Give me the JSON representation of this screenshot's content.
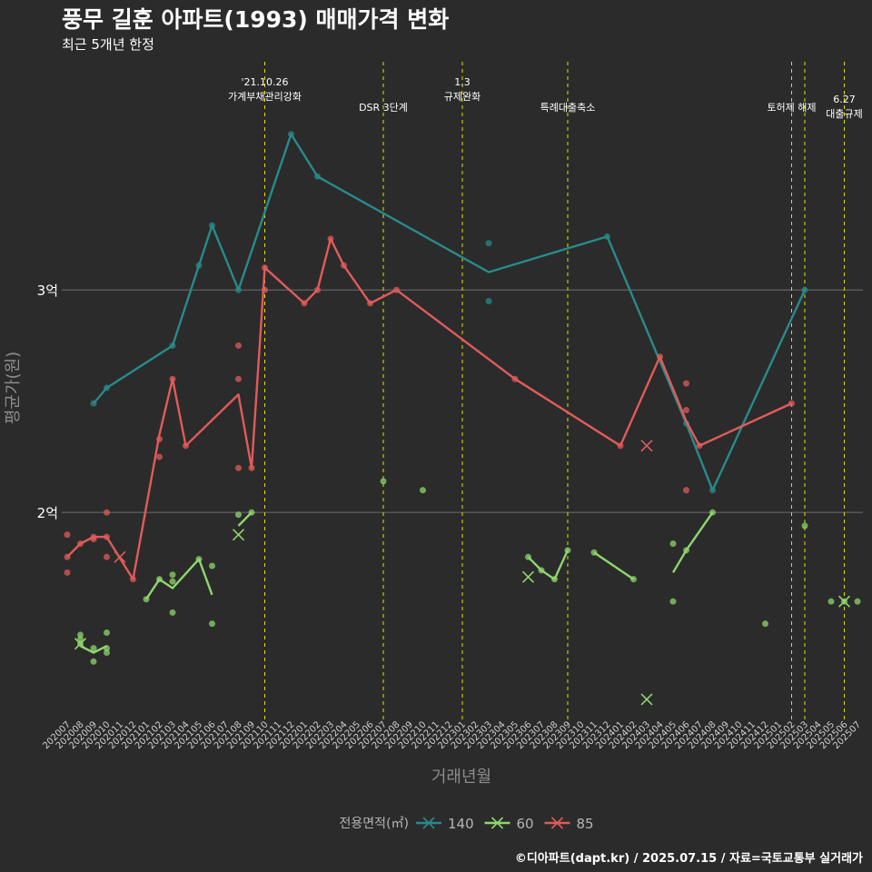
{
  "title": "풍무 길훈 아파트(1993) 매매가격 변화",
  "subtitle": "최근 5개년 한정",
  "caption": "©디아파트(dapt.kr) / 2025.07.15 / 자료=국토교통부 실거래가",
  "chart_data": {
    "type": "line",
    "xlabel": "거래년월",
    "ylabel": "평균가(원)",
    "categories": [
      "202007",
      "202008",
      "202009",
      "202010",
      "202011",
      "202012",
      "202101",
      "202102",
      "202103",
      "202104",
      "202105",
      "202106",
      "202107",
      "202108",
      "202109",
      "202110",
      "202111",
      "202112",
      "202201",
      "202202",
      "202203",
      "202204",
      "202205",
      "202206",
      "202207",
      "202208",
      "202209",
      "202210",
      "202211",
      "202212",
      "202301",
      "202302",
      "202303",
      "202304",
      "202305",
      "202306",
      "202307",
      "202308",
      "202309",
      "202310",
      "202311",
      "202312",
      "202401",
      "202402",
      "202403",
      "202404",
      "202405",
      "202406",
      "202407",
      "202408",
      "202409",
      "202410",
      "202411",
      "202412",
      "202501",
      "202502",
      "202503",
      "202504",
      "202505",
      "202506",
      "202507"
    ],
    "y_ticks": [
      {
        "value": 20000,
        "label": "2억"
      },
      {
        "value": 30000,
        "label": "3억"
      }
    ],
    "y_unit": "만원",
    "ylim": [
      10700,
      40500
    ],
    "grid": true,
    "legend_title": "전용면적(㎡)",
    "legend_position": "bottom",
    "series": [
      {
        "name": "140",
        "color": "#2a8a8a",
        "line": [
          [
            "202009",
            24900
          ],
          [
            "202010",
            25600
          ],
          [
            "202103",
            27500
          ],
          [
            "202105",
            31100
          ],
          [
            "202106",
            32900
          ],
          [
            "202108",
            30000
          ],
          [
            "202112",
            37000
          ],
          [
            "202202",
            35100
          ],
          [
            "202303",
            30800
          ],
          [
            "202312",
            32400
          ],
          [
            "202406",
            24000
          ],
          [
            "202408",
            21000
          ],
          [
            "202503",
            30000
          ]
        ],
        "points": [
          [
            "202009",
            24900
          ],
          [
            "202010",
            25600
          ],
          [
            "202103",
            27500
          ],
          [
            "202105",
            31100
          ],
          [
            "202106",
            32900
          ],
          [
            "202108",
            30000
          ],
          [
            "202112",
            37000
          ],
          [
            "202202",
            35100
          ],
          [
            "202303",
            32100
          ],
          [
            "202303",
            29500
          ],
          [
            "202312",
            32400
          ],
          [
            "202406",
            24000
          ],
          [
            "202408",
            21000
          ],
          [
            "202503",
            30000
          ]
        ],
        "cancelled": []
      },
      {
        "name": "60",
        "color": "#8fd66e",
        "line": [
          [
            [
              "202008",
              14000
            ],
            [
              "202009",
              13700
            ],
            [
              "202010",
              14000
            ]
          ],
          [
            [
              "202101",
              16100
            ],
            [
              "202102",
              17000
            ],
            [
              "202103",
              16600
            ],
            [
              "202105",
              17900
            ],
            [
              "202106",
              16300
            ]
          ],
          [
            [
              "202108",
              19400
            ],
            [
              "202109",
              20000
            ]
          ],
          [
            [
              "202306",
              18000
            ],
            [
              "202307",
              17400
            ],
            [
              "202308",
              17000
            ],
            [
              "202309",
              18300
            ]
          ],
          [
            [
              "202311",
              18200
            ],
            [
              "202402",
              17000
            ]
          ],
          [
            [
              "202405",
              17300
            ],
            [
              "202406",
              18300
            ],
            [
              "202408",
              20000
            ]
          ]
        ],
        "points": [
          [
            "202008",
            14500
          ],
          [
            "202008",
            14300
          ],
          [
            "202008",
            14100
          ],
          [
            "202009",
            13900
          ],
          [
            "202009",
            13300
          ],
          [
            "202010",
            14600
          ],
          [
            "202010",
            13900
          ],
          [
            "202010",
            13700
          ],
          [
            "202101",
            16100
          ],
          [
            "202102",
            17000
          ],
          [
            "202103",
            17200
          ],
          [
            "202103",
            16900
          ],
          [
            "202103",
            15500
          ],
          [
            "202105",
            17900
          ],
          [
            "202106",
            17600
          ],
          [
            "202106",
            15000
          ],
          [
            "202108",
            19900
          ],
          [
            "202109",
            20000
          ],
          [
            "202207",
            21400
          ],
          [
            "202210",
            21000
          ],
          [
            "202306",
            18000
          ],
          [
            "202307",
            17400
          ],
          [
            "202308",
            17000
          ],
          [
            "202309",
            18300
          ],
          [
            "202311",
            18200
          ],
          [
            "202402",
            17000
          ],
          [
            "202405",
            18600
          ],
          [
            "202405",
            16000
          ],
          [
            "202406",
            18300
          ],
          [
            "202408",
            20000
          ],
          [
            "202412",
            15000
          ],
          [
            "202503",
            19400
          ],
          [
            "202505",
            16000
          ],
          [
            "202506",
            16000
          ],
          [
            "202507",
            16000
          ]
        ],
        "cancelled": [
          [
            "202008",
            14100
          ],
          [
            "202108",
            19000
          ],
          [
            "202306",
            17100
          ],
          [
            "202403",
            11600
          ],
          [
            "202506",
            16000
          ]
        ]
      },
      {
        "name": "85",
        "color": "#e15b5b",
        "line": [
          [
            "202007",
            18000
          ],
          [
            "202008",
            18600
          ],
          [
            "202009",
            18900
          ],
          [
            "202010",
            18900
          ],
          [
            "202012",
            17000
          ],
          [
            "202102",
            23500
          ],
          [
            "202103",
            26000
          ],
          [
            "202104",
            23000
          ],
          [
            "202108",
            25300
          ],
          [
            "202109",
            22000
          ],
          [
            "202110",
            31000
          ],
          [
            "202201",
            29400
          ],
          [
            "202202",
            30000
          ],
          [
            "202203",
            32300
          ],
          [
            "202204",
            31100
          ],
          [
            "202206",
            29400
          ],
          [
            "202208",
            30000
          ],
          [
            "202305",
            26000
          ],
          [
            "202401",
            23000
          ],
          [
            "202404",
            27000
          ],
          [
            "202406",
            24100
          ],
          [
            "202407",
            23000
          ],
          [
            "202502",
            24900
          ]
        ],
        "points": [
          [
            "202007",
            19000
          ],
          [
            "202007",
            18000
          ],
          [
            "202007",
            17300
          ],
          [
            "202008",
            18600
          ],
          [
            "202009",
            18900
          ],
          [
            "202009",
            18800
          ],
          [
            "202010",
            20000
          ],
          [
            "202010",
            18900
          ],
          [
            "202010",
            18000
          ],
          [
            "202012",
            17000
          ],
          [
            "202102",
            23300
          ],
          [
            "202102",
            22500
          ],
          [
            "202103",
            26000
          ],
          [
            "202104",
            23000
          ],
          [
            "202108",
            27500
          ],
          [
            "202108",
            26000
          ],
          [
            "202108",
            22000
          ],
          [
            "202109",
            22000
          ],
          [
            "202110",
            31000
          ],
          [
            "202110",
            30000
          ],
          [
            "202201",
            29400
          ],
          [
            "202202",
            30000
          ],
          [
            "202203",
            32300
          ],
          [
            "202204",
            31100
          ],
          [
            "202206",
            29400
          ],
          [
            "202208",
            30000
          ],
          [
            "202305",
            26000
          ],
          [
            "202401",
            23000
          ],
          [
            "202404",
            27000
          ],
          [
            "202406",
            25800
          ],
          [
            "202406",
            24600
          ],
          [
            "202406",
            21000
          ],
          [
            "202407",
            23000
          ],
          [
            "202502",
            24900
          ]
        ],
        "cancelled": [
          [
            "202011",
            18000
          ],
          [
            "202403",
            23000
          ]
        ]
      }
    ],
    "events": [
      {
        "month": "202110",
        "label": "'21.10.26\n가계부채관리강화"
      },
      {
        "month": "202207",
        "label": "DSR 3단계"
      },
      {
        "month": "202301",
        "label": "1.3\n규제완화"
      },
      {
        "month": "202309",
        "label": "특례대출축소"
      },
      {
        "month": "202502",
        "label": "토허제 해제"
      },
      {
        "month": "202503",
        "label": ""
      },
      {
        "month": "202506",
        "label": "6.27\n대출규제"
      }
    ],
    "event_line_color": "#e0e000"
  }
}
